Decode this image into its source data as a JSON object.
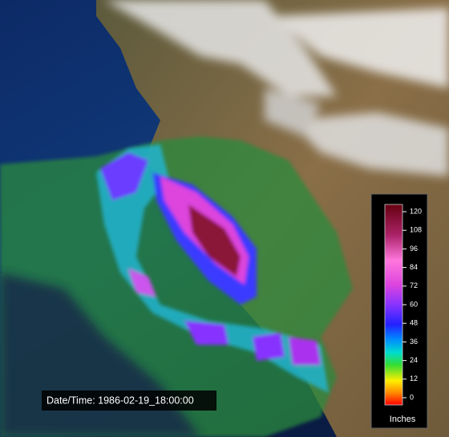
{
  "timestamp": "Date/Time: 1986-02-19_18:00:00",
  "colorbar": {
    "label": "Inches",
    "lim": [
      0,
      120
    ],
    "ticks": [
      0,
      12,
      24,
      36,
      48,
      60,
      72,
      84,
      96,
      108,
      120
    ]
  }
}
